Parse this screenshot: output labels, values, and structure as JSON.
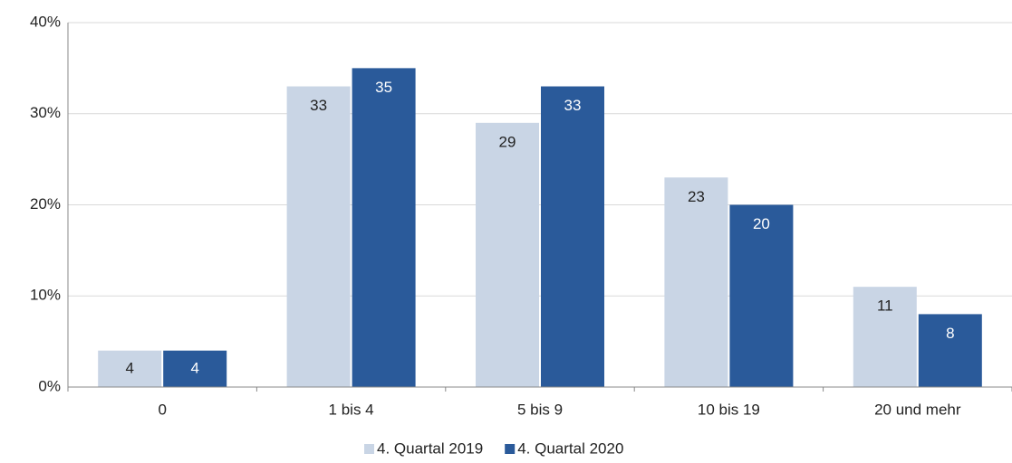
{
  "chart_data": {
    "type": "bar",
    "categories": [
      "0",
      "1 bis 4",
      "5 bis 9",
      "10 bis 19",
      "20 und mehr"
    ],
    "series": [
      {
        "name": "4. Quartal 2019",
        "color": "#c9d5e5",
        "values": [
          4,
          33,
          29,
          23,
          11
        ]
      },
      {
        "name": "4. Quartal 2020",
        "color": "#2a5a9a",
        "values": [
          4,
          35,
          33,
          20,
          8
        ]
      }
    ],
    "ylim": [
      0,
      40
    ],
    "yticks": [
      {
        "value": 0,
        "label": "0%"
      },
      {
        "value": 10,
        "label": "10%"
      },
      {
        "value": 20,
        "label": "20%"
      },
      {
        "value": 30,
        "label": "30%"
      },
      {
        "value": 40,
        "label": "40%"
      }
    ],
    "grid": true
  }
}
